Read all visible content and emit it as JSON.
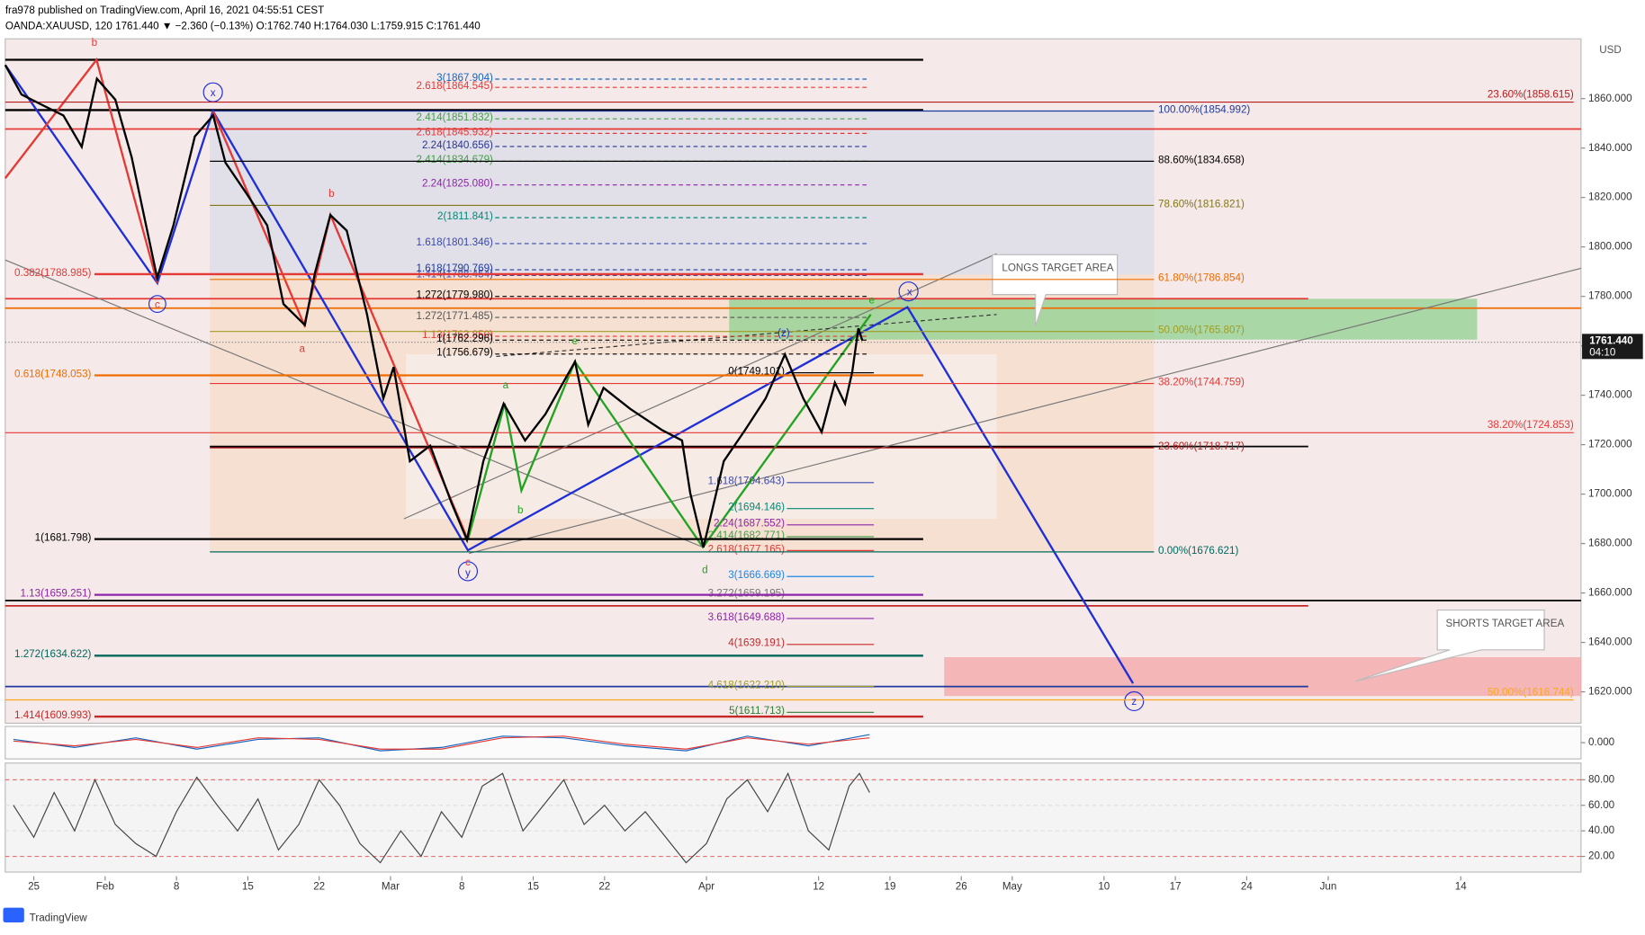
{
  "header": {
    "published": "fra978 published on TradingView.com, April 16, 2021 04:55:51 CEST",
    "symbol": "OANDA:XAUUSD, 120  1761.440 ▼ −2.360 (−0.13%) O:1762.740 H:1764.030 L:1759.915 C:1761.440",
    "currency": "USD",
    "footer": "TradingView"
  },
  "chart_data": [
    {
      "type": "line",
      "xlim": [
        -2.8,
        151.8
      ],
      "ylim": [
        1607.3,
        1884.2
      ],
      "xticks": [
        {
          "value": 0,
          "label": "25"
        },
        {
          "value": 7,
          "label": "Feb"
        },
        {
          "value": 14,
          "label": "8"
        },
        {
          "value": 21,
          "label": "15"
        },
        {
          "value": 28,
          "label": "22"
        },
        {
          "value": 35,
          "label": "Mar"
        },
        {
          "value": 42,
          "label": "8"
        },
        {
          "value": 49,
          "label": "15"
        },
        {
          "value": 56,
          "label": "22"
        },
        {
          "value": 66,
          "label": "Apr"
        },
        {
          "value": 77,
          "label": "12"
        },
        {
          "value": 84,
          "label": "19"
        },
        {
          "value": 91,
          "label": "26"
        },
        {
          "value": 96,
          "label": "May"
        },
        {
          "value": 105,
          "label": "10"
        },
        {
          "value": 112,
          "label": "17"
        },
        {
          "value": 119,
          "label": "24"
        },
        {
          "value": 127,
          "label": "Jun"
        },
        {
          "value": 140,
          "label": "14"
        }
      ],
      "yticks": [
        {
          "value": 1620,
          "label": "1620.000"
        },
        {
          "value": 1640,
          "label": "1640.000"
        },
        {
          "value": 1660,
          "label": "1660.000"
        },
        {
          "value": 1680,
          "label": "1680.000"
        },
        {
          "value": 1700,
          "label": "1700.000"
        },
        {
          "value": 1720,
          "label": "1720.000"
        },
        {
          "value": 1740,
          "label": "1740.000"
        },
        {
          "value": 1760,
          "label": "1760.000"
        },
        {
          "value": 1780,
          "label": "1780.000"
        },
        {
          "value": 1800,
          "label": "1800.000"
        },
        {
          "value": 1820,
          "label": "1820.000"
        },
        {
          "value": 1840,
          "label": "1840.000"
        },
        {
          "value": 1860,
          "label": "1860.000"
        }
      ],
      "x": [
        -2.8,
        -1.2,
        0.8,
        2.9,
        4.7,
        6.2,
        8.0,
        9.6,
        12.1,
        13.7,
        15.8,
        17.6,
        18.8,
        20.9,
        22.9,
        24.5,
        26.6,
        27.6,
        29.1,
        30.7,
        32.7,
        34.3,
        35.3,
        36.9,
        38.9,
        41.0,
        42.5,
        44.1,
        46.1,
        48.2,
        50.2,
        53.1,
        54.4,
        55.9,
        58.5,
        61.6,
        63.6,
        64.4,
        65.7,
        67.7,
        69.8,
        71.8,
        73.7,
        75.5,
        77.3,
        78.6,
        79.6,
        80.3,
        80.9,
        81.3
      ],
      "series": [
        {
          "color": "#000000",
          "values": [
            1873.6,
            1861.7,
            1857.5,
            1853.2,
            1840.5,
            1868.1,
            1859.6,
            1836.3,
            1787.5,
            1808.7,
            1844.7,
            1853.2,
            1834.1,
            1821.4,
            1808.7,
            1776.9,
            1768.4,
            1789.6,
            1812.9,
            1806.6,
            1772.6,
            1738.7,
            1751.4,
            1713.3,
            1719.6,
            1696.3,
            1681.5,
            1713.3,
            1736.6,
            1721.7,
            1732.4,
            1753.6,
            1728.1,
            1743.0,
            1734.5,
            1726.0,
            1721.7,
            1700.5,
            1678.5,
            1713.3,
            1726.0,
            1738.7,
            1756.5,
            1738.7,
            1725.1,
            1745.1,
            1736.6,
            1749.3,
            1767.1,
            1762.0
          ]
        }
      ],
      "last_price": {
        "value": 1761.44,
        "label": "1761.440",
        "countdown": "04:10"
      },
      "levels": [
        {
          "label": "3(1867.904)",
          "value": 1867.904,
          "color": "#1565c0"
        },
        {
          "label": "2.618(1864.545)",
          "value": 1864.545,
          "color": "#e53935"
        },
        {
          "label": "2.414(1851.832)",
          "value": 1851.832,
          "color": "#43a047"
        },
        {
          "label": "2.618(1845.932)",
          "value": 1845.932,
          "color": "#e53935"
        },
        {
          "label": "2.24(1840.656)",
          "value": 1840.656,
          "color": "#283593"
        },
        {
          "label": "2.414(1834.679)",
          "value": 1834.679,
          "color": "#43a047"
        },
        {
          "label": "2.24(1825.080)",
          "value": 1825.08,
          "color": "#8e24aa"
        },
        {
          "label": "2(1811.841)",
          "value": 1811.841,
          "color": "#00897b"
        },
        {
          "label": "1.618(1801.346)",
          "value": 1801.346,
          "color": "#3949ab"
        },
        {
          "label": "1.618(1790.769)",
          "value": 1790.769,
          "color": "#1e3a9e"
        },
        {
          "label": "1.414(1788.454)",
          "value": 1788.454,
          "color": "#3949ab"
        },
        {
          "label": "1.272(1779.980)",
          "value": 1779.98,
          "color": "#000000"
        },
        {
          "label": "1.272(1771.485)",
          "value": 1771.485,
          "color": "#555555"
        },
        {
          "label": "1.13(1763.850)",
          "value": 1763.85,
          "color": "#e53935"
        },
        {
          "label": "1(1762.296)",
          "value": 1762.296,
          "color": "#000000"
        },
        {
          "label": "1(1756.679)",
          "value": 1756.679,
          "color": "#000000"
        },
        {
          "label": "0(1749.101)",
          "value": 1749.101,
          "color": "#000000"
        },
        {
          "label": "1.618(1704.643)",
          "value": 1704.643,
          "color": "#3949ab"
        },
        {
          "label": "2(1694.146)",
          "value": 1694.146,
          "color": "#00897b"
        },
        {
          "label": "2.24(1687.552)",
          "value": 1687.552,
          "color": "#8e24aa"
        },
        {
          "label": "2.414(1682.771)",
          "value": 1682.771,
          "color": "#43a047"
        },
        {
          "label": "2.618(1677.165)",
          "value": 1677.165,
          "color": "#e53935"
        },
        {
          "label": "3(1666.669)",
          "value": 1666.669,
          "color": "#1e88e5"
        },
        {
          "label": "3.272(1659.195)",
          "value": 1659.195,
          "color": "#757575"
        },
        {
          "label": "3.618(1649.688)",
          "value": 1649.688,
          "color": "#8e24aa"
        },
        {
          "label": "4(1639.191)",
          "value": 1639.191,
          "color": "#c62828"
        },
        {
          "label": "4.618(1622.210)",
          "value": 1622.21,
          "color": "#9e9d24"
        },
        {
          "label": "5(1611.713)",
          "value": 1611.713,
          "color": "#2e7d32"
        },
        {
          "label": "0.382(1788.985)",
          "value": 1788.985,
          "color": "#e53935"
        },
        {
          "label": "0.618(1748.053)",
          "value": 1748.053,
          "color": "#ef6c00"
        },
        {
          "label": "1(1681.798)",
          "value": 1681.798,
          "color": "#000000"
        },
        {
          "label": "1.13(1659.251)",
          "value": 1659.251,
          "color": "#8e24aa"
        },
        {
          "label": "1.272(1634.622)",
          "value": 1634.622,
          "color": "#00695c"
        },
        {
          "label": "1.414(1609.993)",
          "value": 1609.993,
          "color": "#c62828"
        },
        {
          "label": "100.00%(1854.992)",
          "value": 1854.992,
          "color": "#1e3a9e"
        },
        {
          "label": "88.60%(1834.658)",
          "value": 1834.658,
          "color": "#000000"
        },
        {
          "label": "78.60%(1816.821)",
          "value": 1816.821,
          "color": "#827717"
        },
        {
          "label": "61.80%(1786.854)",
          "value": 1786.854,
          "color": "#ef6c00"
        },
        {
          "label": "50.00%(1765.807)",
          "value": 1765.807,
          "color": "#9e9d24"
        },
        {
          "label": "38.20%(1744.759)",
          "value": 1744.759,
          "color": "#e53935"
        },
        {
          "label": "23.60%(1718.717)",
          "value": 1718.717,
          "color": "#b71c1c"
        },
        {
          "label": "0.00%(1676.621)",
          "value": 1676.621,
          "color": "#00695c"
        },
        {
          "label": "23.60%(1858.615)",
          "value": 1858.615,
          "color": "#b71c1c"
        },
        {
          "label": "38.20%(1724.853)",
          "value": 1724.853,
          "color": "#e53935"
        },
        {
          "label": "50.00%(1616.744)",
          "value": 1616.744,
          "color": "#f9a825"
        }
      ],
      "wave_labels": [
        "b",
        "x",
        "c",
        "b",
        "a",
        "e",
        "(z)",
        "x",
        "e",
        "a",
        "b",
        "c",
        "y",
        "d",
        "z"
      ],
      "callouts": [
        "LONGS TARGET AREA",
        "SHORTS TARGET AREA"
      ]
    },
    {
      "type": "line",
      "ylim": [
        -1,
        1
      ],
      "yticks": [
        {
          "value": 0,
          "label": "0.000"
        }
      ],
      "x": [
        -2,
        4,
        10,
        16,
        22,
        28,
        34,
        40,
        46,
        52,
        58,
        64,
        70,
        76,
        82
      ],
      "series": [
        {
          "color": "#1565c0",
          "values": [
            0.2,
            -0.3,
            0.3,
            -0.4,
            0.2,
            0.3,
            -0.5,
            -0.3,
            0.4,
            0.3,
            -0.2,
            -0.5,
            0.4,
            -0.2,
            0.5
          ]
        },
        {
          "color": "#e53935",
          "values": [
            0.1,
            -0.2,
            0.2,
            -0.3,
            0.3,
            0.2,
            -0.4,
            -0.4,
            0.3,
            0.4,
            -0.1,
            -0.4,
            0.3,
            -0.1,
            0.3
          ]
        }
      ]
    },
    {
      "type": "line",
      "ylim": [
        7.7,
        93.1
      ],
      "yticks": [
        {
          "value": 20,
          "label": "20.00"
        },
        {
          "value": 40,
          "label": "40.00"
        },
        {
          "value": 60,
          "label": "60.00"
        },
        {
          "value": 80,
          "label": "80.00"
        }
      ],
      "x": [
        -2,
        0,
        2,
        4,
        6,
        8,
        10,
        12,
        14,
        16,
        18,
        20,
        22,
        24,
        26,
        28,
        30,
        32,
        34,
        36,
        38,
        40,
        42,
        44,
        46,
        48,
        50,
        52,
        54,
        56,
        58,
        60,
        62,
        64,
        66,
        68,
        70,
        72,
        74,
        76,
        78,
        80,
        81,
        82
      ],
      "series": [
        {
          "color": "#424242",
          "values": [
            60,
            35,
            70,
            40,
            80,
            45,
            30,
            20,
            55,
            82,
            60,
            40,
            65,
            25,
            45,
            80,
            60,
            30,
            15,
            40,
            20,
            55,
            35,
            75,
            85,
            40,
            60,
            80,
            45,
            60,
            40,
            55,
            35,
            15,
            30,
            65,
            80,
            55,
            85,
            40,
            25,
            75,
            85,
            70
          ]
        }
      ]
    }
  ]
}
